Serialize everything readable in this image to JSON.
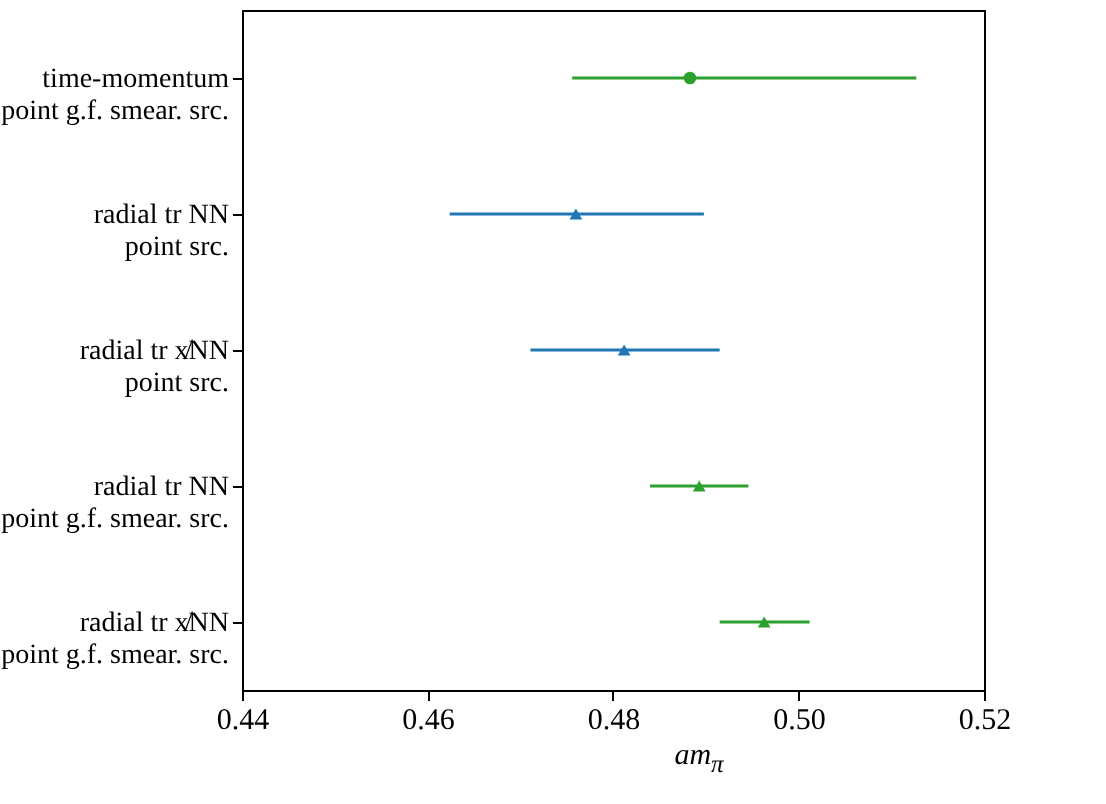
{
  "chart_data": {
    "type": "scatter",
    "orientation": "horizontal",
    "xlabel": "am$_{π}$",
    "categories": [
      "time-momentum\npoint g.f. smear. src.",
      "radial tr NN\npoint src.",
      "radial tr x̸NN\npoint src.",
      "radial tr NN\npoint g.f. smear. src.",
      "radial tr x̸NN\npoint g.f. smear. src."
    ],
    "series": [
      {
        "color": "#2ca02c",
        "marker": "circle",
        "values": [
          0.4883,
          null,
          null,
          null,
          null
        ],
        "errors": [
          [
            0.4756,
            0.5127
          ],
          null,
          null,
          null,
          null
        ]
      },
      {
        "color": "#1f77b4",
        "marker": "triangle",
        "values": [
          null,
          0.476,
          0.4812,
          null,
          null
        ],
        "errors": [
          null,
          [
            0.4624,
            0.4898
          ],
          [
            0.4711,
            0.4915
          ],
          null,
          null
        ]
      },
      {
        "color": "#2ca02c",
        "marker": "triangle",
        "values": [
          null,
          null,
          null,
          0.4893,
          0.4963
        ],
        "errors": [
          null,
          null,
          null,
          [
            0.484,
            0.4946
          ],
          [
            0.4915,
            0.5012
          ]
        ]
      }
    ],
    "xlim": [
      0.44,
      0.52
    ],
    "xticks": [
      0.44,
      0.46,
      0.48,
      {
        "value": 0.5,
        "label": "0.50"
      },
      {
        "value": 0.52,
        "label": "0.52"
      }
    ],
    "grid": false
  }
}
